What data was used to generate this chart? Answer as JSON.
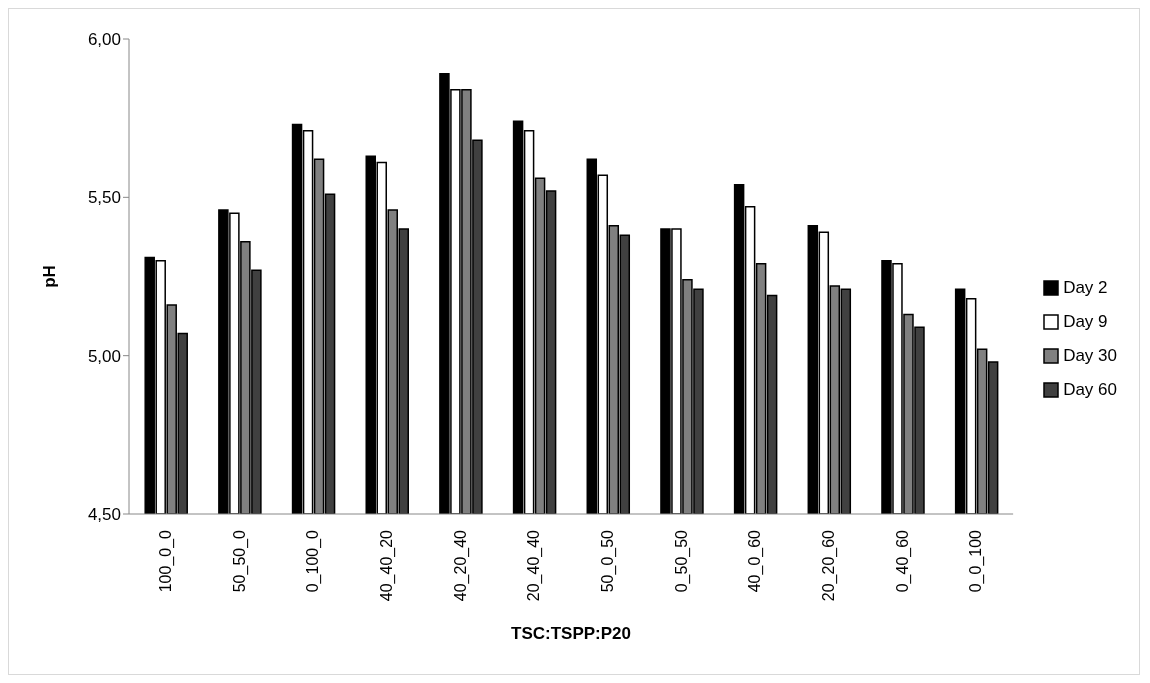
{
  "chart_data": {
    "type": "bar",
    "xlabel": "TSC:TSPP:P20",
    "ylabel": "pH",
    "categories": [
      "100_0_0",
      "50_50_0",
      "0_100_0",
      "40_40_20",
      "40_20_40",
      "20_40_40",
      "50_0_50",
      "0_50_50",
      "40_0_60",
      "20_20_60",
      "0_40_60",
      "0_0_100"
    ],
    "series": [
      {
        "name": "Day 2",
        "color": "#000000",
        "values": [
          5.31,
          5.46,
          5.73,
          5.63,
          5.89,
          5.74,
          5.62,
          5.4,
          5.54,
          5.41,
          5.3,
          5.21
        ]
      },
      {
        "name": "Day 9",
        "color": "#ffffff",
        "values": [
          5.3,
          5.45,
          5.71,
          5.61,
          5.84,
          5.71,
          5.57,
          5.4,
          5.47,
          5.39,
          5.29,
          5.18
        ]
      },
      {
        "name": "Day 30",
        "color": "#808080",
        "values": [
          5.16,
          5.36,
          5.62,
          5.46,
          5.84,
          5.56,
          5.41,
          5.24,
          5.29,
          5.22,
          5.13,
          5.02
        ]
      },
      {
        "name": "Day 60",
        "color": "#404040",
        "values": [
          5.07,
          5.27,
          5.51,
          5.4,
          5.68,
          5.52,
          5.38,
          5.21,
          5.19,
          5.21,
          5.09,
          4.98
        ]
      }
    ],
    "ylim": [
      4.5,
      6.0
    ],
    "yticks": [
      {
        "value": 4.5,
        "label": "4,50"
      },
      {
        "value": 5.0,
        "label": "5,00"
      },
      {
        "value": 5.5,
        "label": "5,50"
      },
      {
        "value": 6.0,
        "label": "6,00"
      }
    ],
    "legend": "right"
  }
}
